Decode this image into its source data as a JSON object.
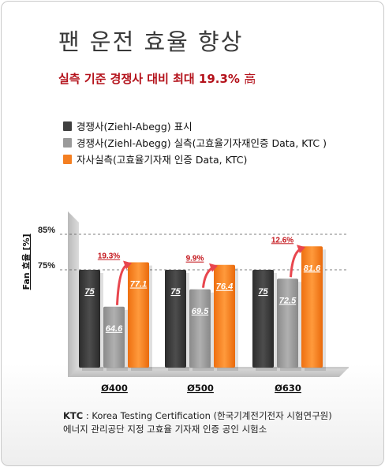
{
  "title": "팬 운전 효율 향상",
  "subtitle": {
    "main": "실측 기준 경쟁사 대비 최대 19.3%",
    "tail": "高"
  },
  "colors": {
    "accent_red": "#b4121b",
    "dark_bar": "#3f3f3f",
    "gray_bar": "#9a9a9a",
    "orange_bar": "#f47f21",
    "arrow": "#e8464e"
  },
  "legend": [
    {
      "label": "경쟁사(Ziehl-Abegg) 표시",
      "color": "#3f3f3f"
    },
    {
      "label": "경쟁사(Ziehl-Abegg) 실측(고효율기자재인증 Data, KTC )",
      "color": "#9a9a9a"
    },
    {
      "label": "자사실측(고효율기자재 인증 Data, KTC)",
      "color": "#f47f21"
    }
  ],
  "chart_data": {
    "type": "bar",
    "ylabel": "Fan 효율 [%]",
    "yticks": [
      "85%",
      "75%"
    ],
    "ytick_values": [
      85,
      75
    ],
    "categories": [
      "Ø400",
      "Ø500",
      "Ø630"
    ],
    "series": [
      {
        "name": "경쟁사(Ziehl-Abegg) 표시",
        "values": [
          75,
          75,
          75
        ],
        "labels": [
          "75",
          "75",
          "75"
        ]
      },
      {
        "name": "경쟁사(Ziehl-Abegg) 실측(고효율기자재인증 Data, KTC )",
        "values": [
          64.6,
          69.5,
          72.5
        ],
        "labels": [
          "64.6",
          "69.5",
          "72.5"
        ]
      },
      {
        "name": "자사실측(고효율기자재 인증 Data, KTC)",
        "values": [
          77.1,
          76.4,
          81.6
        ],
        "labels": [
          "77.1",
          "76.4",
          "81.6"
        ]
      }
    ],
    "improvements": [
      "19.3%",
      "9.9%",
      "12.6%"
    ]
  },
  "footer": {
    "ktc_label": "KTC",
    "ktc_text": " : Korea Testing Certification (한국기계전기전자 시험연구원)",
    "line2": "에너지 관리공단 지정 고효율 기자재 인증 공인 시험소"
  }
}
